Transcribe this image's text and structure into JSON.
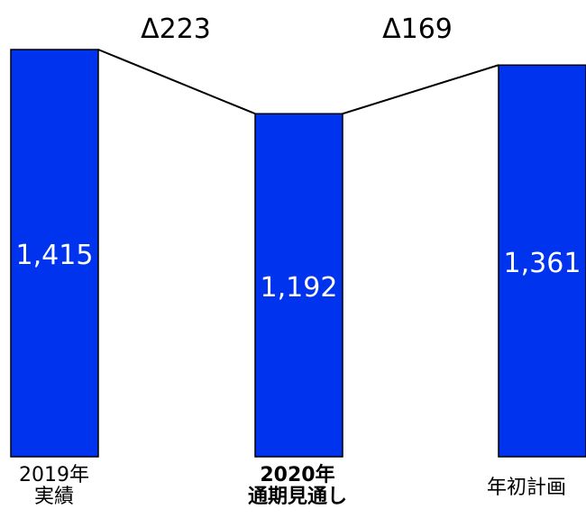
{
  "chart_data": {
    "type": "bar",
    "categories": [
      {
        "line1": "2019年",
        "line2": "実績",
        "bold": false
      },
      {
        "line1": "2020年",
        "line2": "通期見通し",
        "bold": true
      },
      {
        "line1": "年初計画",
        "line2": "",
        "bold": false
      }
    ],
    "values": [
      1415,
      1192,
      1361
    ],
    "value_labels": [
      "1,415",
      "1,192",
      "1,361"
    ],
    "differences": [
      {
        "from": 0,
        "to": 1,
        "label": "Δ223"
      },
      {
        "from": 1,
        "to": 2,
        "label": "Δ169"
      }
    ],
    "bar_color": "#0033ee",
    "bar_edge_color": "#000000",
    "value_label_color": "#ffffff",
    "connector_color": "#000000",
    "grid": false,
    "legend": "none"
  }
}
